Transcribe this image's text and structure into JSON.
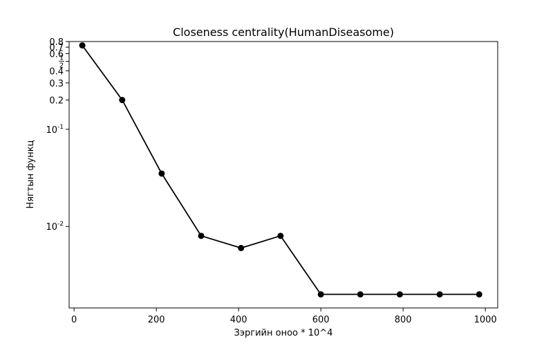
{
  "chart_data": {
    "type": "line",
    "title": "Closeness centrality(HumanDiseasome)",
    "xlabel": "Зэргийн оноо * 10^4",
    "ylabel": "Нягтын функц",
    "yscale": "log",
    "xlim": [
      -12,
      1030
    ],
    "ylim": [
      0.00145,
      0.8
    ],
    "grid": false,
    "x_ticks": [
      0,
      200,
      400,
      600,
      800,
      1000
    ],
    "y_ticks": [
      {
        "value": 0.8,
        "label": "0.8"
      },
      {
        "value": 0.7,
        "label": "0.7"
      },
      {
        "value": 0.6,
        "label": "0.6"
      },
      {
        "value": 0.5,
        "label": "1/2"
      },
      {
        "value": 0.4,
        "label": "0.4"
      },
      {
        "value": 0.3,
        "label": "0.3"
      },
      {
        "value": 0.2,
        "label": "0.2"
      },
      {
        "value": 0.1,
        "label": "10^-1"
      },
      {
        "value": 0.01,
        "label": "10^-2"
      }
    ],
    "series": [
      {
        "color": "#000000",
        "marker": "circle",
        "x": [
          20,
          117,
          213,
          309,
          406,
          502,
          600,
          696,
          792,
          889,
          985
        ],
        "y": [
          0.73,
          0.2,
          0.035,
          0.008,
          0.006,
          0.008,
          0.002,
          0.002,
          0.002,
          0.002,
          0.002
        ]
      }
    ]
  }
}
